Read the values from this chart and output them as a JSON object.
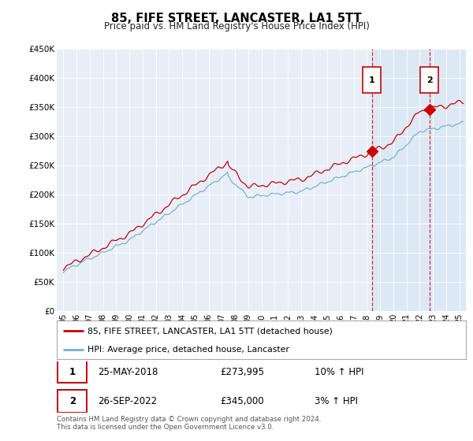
{
  "title": "85, FIFE STREET, LANCASTER, LA1 5TT",
  "subtitle": "Price paid vs. HM Land Registry's House Price Index (HPI)",
  "legend_line1": "85, FIFE STREET, LANCASTER, LA1 5TT (detached house)",
  "legend_line2": "HPI: Average price, detached house, Lancaster",
  "annotation1_date": "25-MAY-2018",
  "annotation1_price": "£273,995",
  "annotation1_hpi": "10% ↑ HPI",
  "annotation1_year": 2018.38,
  "annotation1_value": 273995,
  "annotation2_date": "26-SEP-2022",
  "annotation2_price": "£345,000",
  "annotation2_hpi": "3% ↑ HPI",
  "annotation2_year": 2022.73,
  "annotation2_value": 345000,
  "footer": "Contains HM Land Registry data © Crown copyright and database right 2024.\nThis data is licensed under the Open Government Licence v3.0.",
  "red_color": "#cc0000",
  "blue_color": "#7aaed6",
  "shade_color": "#dde8f5",
  "background_plot": "#e8eef8",
  "ylim_min": 0,
  "ylim_max": 450000,
  "xlim_min": 1994.5,
  "xlim_max": 2025.5,
  "yticks": [
    0,
    50000,
    100000,
    150000,
    200000,
    250000,
    300000,
    350000,
    400000,
    450000
  ],
  "ytick_labels": [
    "£0",
    "£50K",
    "£100K",
    "£150K",
    "£200K",
    "£250K",
    "£300K",
    "£350K",
    "£400K",
    "£450K"
  ],
  "xtick_years": [
    1995,
    1996,
    1997,
    1998,
    1999,
    2000,
    2001,
    2002,
    2003,
    2004,
    2005,
    2006,
    2007,
    2008,
    2009,
    2010,
    2011,
    2012,
    2013,
    2014,
    2015,
    2016,
    2017,
    2018,
    2019,
    2020,
    2021,
    2022,
    2023,
    2024,
    2025
  ],
  "xtick_labels": [
    "95",
    "96",
    "97",
    "98",
    "99",
    "00",
    "01",
    "02",
    "03",
    "04",
    "05",
    "06",
    "07",
    "08",
    "09",
    "10",
    "11",
    "12",
    "13",
    "14",
    "15",
    "16",
    "17",
    "18",
    "19",
    "20",
    "21",
    "22",
    "23",
    "24",
    "25"
  ]
}
